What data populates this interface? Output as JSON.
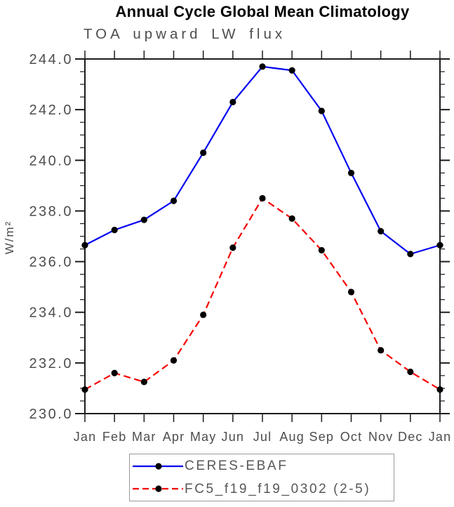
{
  "chart_data": {
    "type": "line",
    "title": "Annual Cycle Global Mean Climatology",
    "subtitle": "TOA upward LW flux",
    "ylabel": "W/m²",
    "xlabel": "",
    "categories": [
      "Jan",
      "Feb",
      "Mar",
      "Apr",
      "May",
      "Jun",
      "Jul",
      "Aug",
      "Sep",
      "Oct",
      "Nov",
      "Dec",
      "Jan"
    ],
    "ylim": [
      230.0,
      244.0
    ],
    "y_major_tick_step": 2.0,
    "y_minor_tick_step": 0.5,
    "y_tick_labels": [
      "230.0",
      "232.0",
      "234.0",
      "236.0",
      "238.0",
      "240.0",
      "242.0",
      "244.0"
    ],
    "grid": false,
    "legend_position": "bottom",
    "series": [
      {
        "name": "CERES-EBAF",
        "line_style": "solid",
        "line_color": "#0000f0",
        "marker": "filled-circle",
        "marker_color": "#000000",
        "values": [
          236.65,
          237.25,
          237.65,
          238.4,
          240.3,
          242.3,
          243.7,
          243.55,
          241.95,
          239.5,
          237.2,
          236.3,
          236.65
        ]
      },
      {
        "name": "FC5_f19_f19_0302 (2-5)",
        "line_style": "dashed",
        "line_color": "#f50000",
        "marker": "filled-circle",
        "marker_color": "#000000",
        "values": [
          230.95,
          231.6,
          231.25,
          232.1,
          233.9,
          236.55,
          238.5,
          237.7,
          236.45,
          234.8,
          232.5,
          231.65,
          230.95
        ]
      }
    ]
  },
  "style": {
    "axis_color": "#1c1c1c",
    "tick_label_color": "#4d4d4d",
    "month_label_color": "#4d4d4d"
  }
}
